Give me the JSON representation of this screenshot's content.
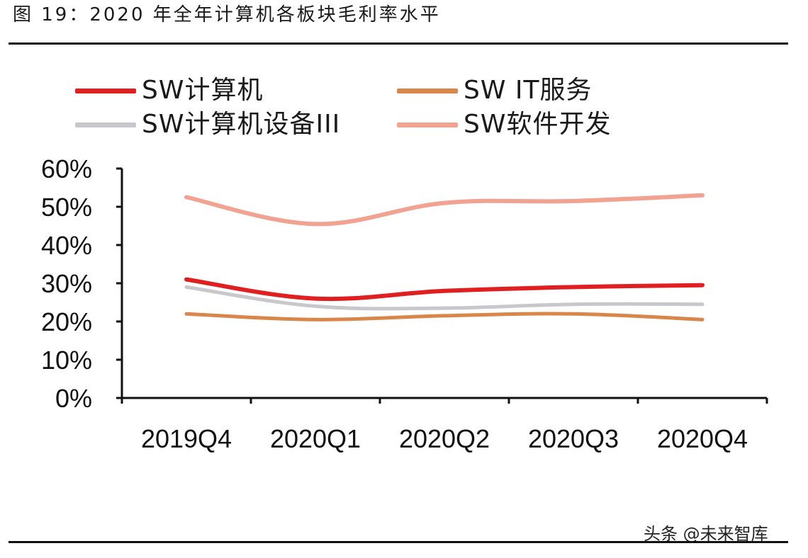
{
  "title": "图 19：2020 年全年计算机各板块毛利率水平",
  "watermark": "头条 @未来智库",
  "chart_data": {
    "type": "line",
    "categories": [
      "2019Q4",
      "2020Q1",
      "2020Q2",
      "2020Q3",
      "2020Q4"
    ],
    "ylim": [
      0,
      0.6
    ],
    "yticks": [
      0,
      0.1,
      0.2,
      0.3,
      0.4,
      0.5,
      0.6
    ],
    "ytick_labels": [
      "0%",
      "10%",
      "20%",
      "30%",
      "40%",
      "50%",
      "60%"
    ],
    "grid": false,
    "legend_position": "top",
    "series": [
      {
        "name": "SW计算机",
        "color": "#e02020",
        "values": [
          0.31,
          0.26,
          0.28,
          0.29,
          0.295
        ]
      },
      {
        "name": "SW IT服务",
        "color": "#d9864a",
        "values": [
          0.22,
          0.205,
          0.215,
          0.22,
          0.205
        ]
      },
      {
        "name": "SW计算机设备III",
        "color": "#c8c8cc",
        "values": [
          0.29,
          0.24,
          0.235,
          0.245,
          0.245
        ]
      },
      {
        "name": "SW软件开发",
        "color": "#f2a291",
        "values": [
          0.525,
          0.455,
          0.51,
          0.515,
          0.53
        ]
      }
    ]
  }
}
